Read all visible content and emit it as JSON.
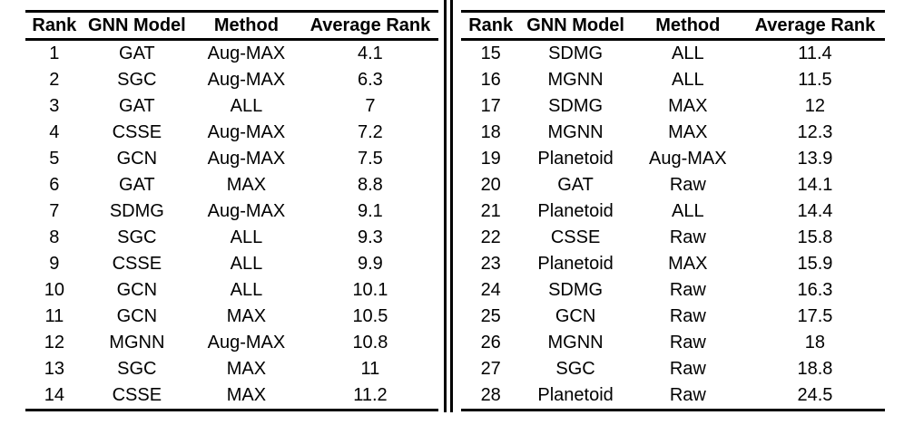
{
  "page": {
    "background": "#ffffff",
    "text_color": "#000000",
    "rule_color": "#000000"
  },
  "columns": [
    "Rank",
    "GNN Model",
    "Method",
    "Average Rank"
  ],
  "tables": [
    {
      "name": "ranks-1-14",
      "rows": [
        [
          "1",
          "GAT",
          "Aug-MAX",
          "4.1"
        ],
        [
          "2",
          "SGC",
          "Aug-MAX",
          "6.3"
        ],
        [
          "3",
          "GAT",
          "ALL",
          "7"
        ],
        [
          "4",
          "CSSE",
          "Aug-MAX",
          "7.2"
        ],
        [
          "5",
          "GCN",
          "Aug-MAX",
          "7.5"
        ],
        [
          "6",
          "GAT",
          "MAX",
          "8.8"
        ],
        [
          "7",
          "SDMG",
          "Aug-MAX",
          "9.1"
        ],
        [
          "8",
          "SGC",
          "ALL",
          "9.3"
        ],
        [
          "9",
          "CSSE",
          "ALL",
          "9.9"
        ],
        [
          "10",
          "GCN",
          "ALL",
          "10.1"
        ],
        [
          "11",
          "GCN",
          "MAX",
          "10.5"
        ],
        [
          "12",
          "MGNN",
          "Aug-MAX",
          "10.8"
        ],
        [
          "13",
          "SGC",
          "MAX",
          "11"
        ],
        [
          "14",
          "CSSE",
          "MAX",
          "11.2"
        ]
      ]
    },
    {
      "name": "ranks-15-28",
      "rows": [
        [
          "15",
          "SDMG",
          "ALL",
          "11.4"
        ],
        [
          "16",
          "MGNN",
          "ALL",
          "11.5"
        ],
        [
          "17",
          "SDMG",
          "MAX",
          "12"
        ],
        [
          "18",
          "MGNN",
          "MAX",
          "12.3"
        ],
        [
          "19",
          "Planetoid",
          "Aug-MAX",
          "13.9"
        ],
        [
          "20",
          "GAT",
          "Raw",
          "14.1"
        ],
        [
          "21",
          "Planetoid",
          "ALL",
          "14.4"
        ],
        [
          "22",
          "CSSE",
          "Raw",
          "15.8"
        ],
        [
          "23",
          "Planetoid",
          "MAX",
          "15.9"
        ],
        [
          "24",
          "SDMG",
          "Raw",
          "16.3"
        ],
        [
          "25",
          "GCN",
          "Raw",
          "17.5"
        ],
        [
          "26",
          "MGNN",
          "Raw",
          "18"
        ],
        [
          "27",
          "SGC",
          "Raw",
          "18.8"
        ],
        [
          "28",
          "Planetoid",
          "Raw",
          "24.5"
        ]
      ]
    }
  ]
}
